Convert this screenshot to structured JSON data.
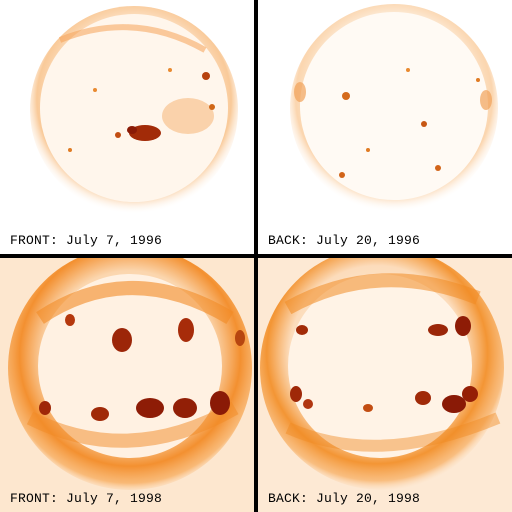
{
  "panels": [
    {
      "caption": "FRONT: July 7, 1996",
      "activity": "low"
    },
    {
      "caption": "BACK: July 20, 1996",
      "activity": "low"
    },
    {
      "caption": "FRONT: July 7, 1998",
      "activity": "high"
    },
    {
      "caption": "BACK: July 20, 1998",
      "activity": "high"
    }
  ],
  "colors": {
    "background": "#ffffff",
    "disk": "#fff6ec",
    "corona": "#f28a1e",
    "active_region": "#8a1a06",
    "divider": "#000000"
  }
}
